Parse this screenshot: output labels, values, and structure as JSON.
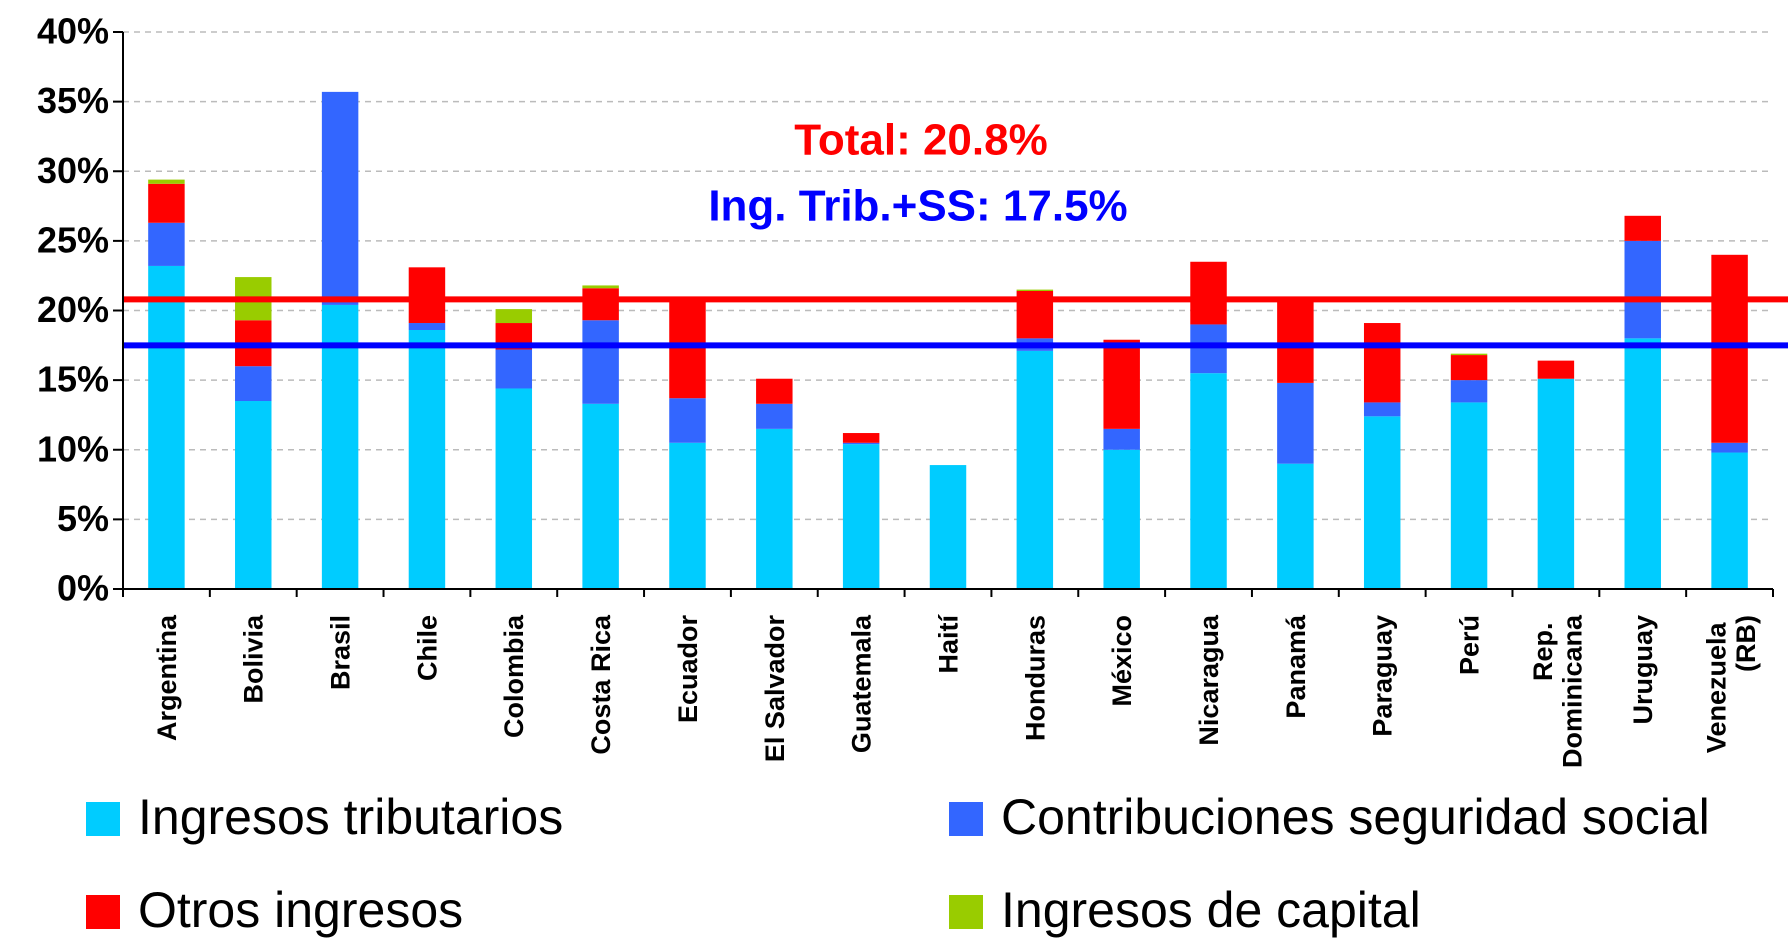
{
  "chart_data": {
    "type": "stacked_bar",
    "categories": [
      "Argentina",
      "Bolivia",
      "Brasil",
      "Chile",
      "Colombia",
      "Costa Rica",
      "Ecuador",
      "El Salvador",
      "Guatemala",
      "Haití",
      "Honduras",
      "México",
      "Nicaragua",
      "Panamá",
      "Paraguay",
      "Perú",
      "Rep. Dominicana",
      "Uruguay",
      "Venezuela (RB)"
    ],
    "series": [
      {
        "name": "Ingresos tributarios",
        "color": "#00ccff",
        "values": [
          23.2,
          13.5,
          20.4,
          18.6,
          14.4,
          13.3,
          10.5,
          11.5,
          10.4,
          8.9,
          17.1,
          10.0,
          15.5,
          9.0,
          12.4,
          13.4,
          15.1,
          18.0,
          9.8
        ]
      },
      {
        "name": "Contribuciones seguridad social",
        "color": "#3366ff",
        "values": [
          3.1,
          2.5,
          15.3,
          0.5,
          2.8,
          6.0,
          3.2,
          1.8,
          0.1,
          0,
          0.9,
          1.5,
          3.5,
          5.8,
          1.0,
          1.6,
          0,
          7.0,
          0.7
        ]
      },
      {
        "name": "Otros ingresos",
        "color": "#ff0000",
        "values": [
          2.8,
          3.3,
          0,
          4.0,
          1.9,
          2.3,
          7.1,
          1.8,
          0.7,
          0,
          3.4,
          6.4,
          4.5,
          6.0,
          5.7,
          1.8,
          1.3,
          1.8,
          13.5
        ]
      },
      {
        "name": "Ingresos de capital",
        "color": "#99cc00",
        "values": [
          0.3,
          3.1,
          0,
          0,
          1.0,
          0.2,
          0,
          0,
          0,
          0,
          0.1,
          0,
          0,
          0,
          0,
          0.1,
          0,
          0,
          0
        ]
      }
    ],
    "reference_lines": [
      {
        "value": 20.8,
        "color": "#ff0000"
      },
      {
        "value": 17.5,
        "color": "#0000ff"
      }
    ],
    "annotations": [
      {
        "text": "Total: 20.8%",
        "color": "#ff0000"
      },
      {
        "text": "Ing. Trib.+SS: 17.5%",
        "color": "#0000ff"
      }
    ],
    "ylim": [
      0,
      40
    ],
    "yticks": [
      {
        "value": 0,
        "label": "0%"
      },
      {
        "value": 5,
        "label": "5%"
      },
      {
        "value": 10,
        "label": "10%"
      },
      {
        "value": 15,
        "label": "15%"
      },
      {
        "value": 20,
        "label": "20%"
      },
      {
        "value": 25,
        "label": "25%"
      },
      {
        "value": 30,
        "label": "30%"
      },
      {
        "value": 35,
        "label": "35%"
      },
      {
        "value": 40,
        "label": "40%"
      }
    ],
    "grid": true
  }
}
